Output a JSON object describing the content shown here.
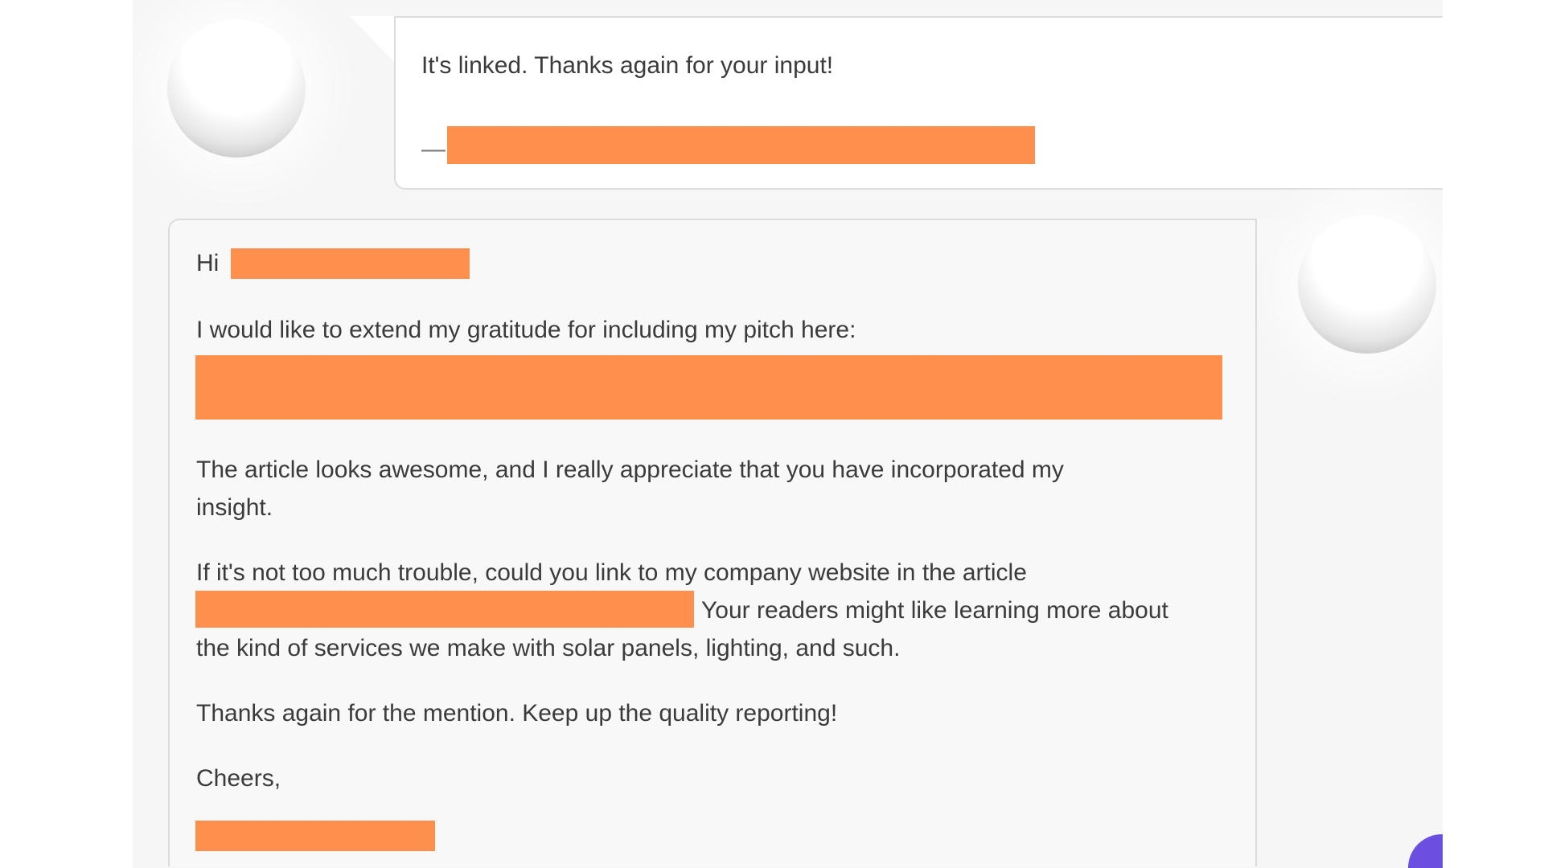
{
  "messages": [
    {
      "text": "It's linked. Thanks again for your input!",
      "signature_prefix": "—"
    },
    {
      "greeting": "Hi",
      "lines": [
        "I would like to extend my gratitude for including my pitch here:",
        "The article looks awesome, and I really appreciate that you have incorporated my",
        "insight.",
        "If it's not too much trouble, could you link to my company website in the article",
        "Your readers might like learning more about",
        "the kind of services we make with solar panels, lighting, and such.",
        "Thanks again for the mention. Keep up the quality reporting!",
        "Cheers,"
      ]
    }
  ],
  "colors": {
    "redaction": "#ff8f4d",
    "accent": "#6c4fe0"
  }
}
